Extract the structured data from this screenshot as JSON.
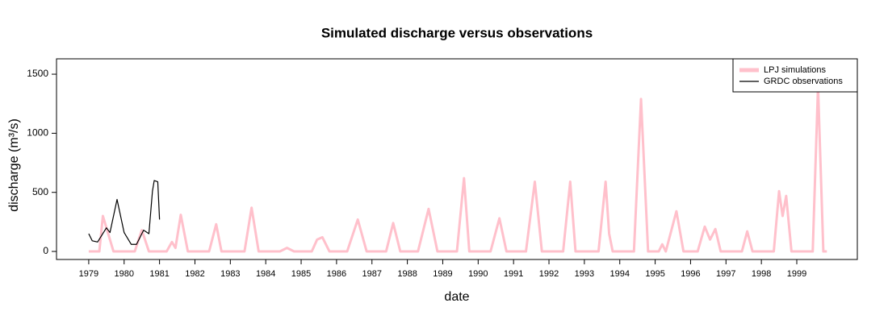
{
  "chart_data": {
    "type": "line",
    "title": "Simulated discharge versus observations",
    "x_label": "date",
    "y_label": "discharge (m³/s)",
    "xlim": [
      1978.09,
      2000.71
    ],
    "ylim": [
      -68,
      1630
    ],
    "xticks": [
      1979,
      1980,
      1981,
      1982,
      1983,
      1984,
      1985,
      1986,
      1987,
      1988,
      1989,
      1990,
      1991,
      1992,
      1993,
      1994,
      1995,
      1996,
      1997,
      1998,
      1999
    ],
    "yticks": [
      0,
      500,
      1000,
      1500
    ],
    "legend": "top-right",
    "series": [
      {
        "name": "LPJ simulations",
        "color": "#ffc0cb",
        "x": [
          1979.0,
          1979.3,
          1979.4,
          1979.55,
          1979.7,
          1979.9,
          1980.3,
          1980.5,
          1980.7,
          1981.2,
          1981.35,
          1981.45,
          1981.6,
          1981.8,
          1982.4,
          1982.6,
          1982.75,
          1983.4,
          1983.6,
          1983.8,
          1984.4,
          1984.6,
          1984.8,
          1985.3,
          1985.45,
          1985.6,
          1985.8,
          1986.3,
          1986.6,
          1986.85,
          1987.4,
          1987.6,
          1987.8,
          1988.3,
          1988.6,
          1988.85,
          1989.4,
          1989.6,
          1989.75,
          1990.35,
          1990.6,
          1990.8,
          1991.35,
          1991.6,
          1991.8,
          1992.4,
          1992.6,
          1992.75,
          1993.4,
          1993.6,
          1993.7,
          1993.8,
          1994.4,
          1994.6,
          1994.8,
          1995.1,
          1995.2,
          1995.3,
          1995.6,
          1995.8,
          1996.2,
          1996.4,
          1996.55,
          1996.7,
          1996.85,
          1997.45,
          1997.6,
          1997.75,
          1998.35,
          1998.5,
          1998.6,
          1998.7,
          1998.85,
          1999.45,
          1999.6,
          1999.75,
          1999.85
        ],
        "values": [
          0,
          0,
          300,
          150,
          0,
          0,
          0,
          180,
          0,
          0,
          80,
          30,
          310,
          0,
          0,
          230,
          0,
          0,
          370,
          0,
          0,
          30,
          0,
          0,
          100,
          120,
          0,
          0,
          270,
          0,
          0,
          240,
          0,
          0,
          360,
          0,
          0,
          620,
          0,
          0,
          280,
          0,
          0,
          590,
          0,
          0,
          590,
          0,
          0,
          590,
          150,
          0,
          0,
          1290,
          0,
          0,
          60,
          0,
          340,
          0,
          0,
          210,
          100,
          190,
          0,
          0,
          170,
          0,
          0,
          510,
          300,
          470,
          0,
          0,
          1400,
          0,
          0
        ]
      },
      {
        "name": "GRDC observations",
        "color": "#000000",
        "x": [
          1979.0,
          1979.1,
          1979.25,
          1979.5,
          1979.6,
          1979.8,
          1980.0,
          1980.2,
          1980.35,
          1980.55,
          1980.7,
          1980.8,
          1980.85,
          1980.95,
          1981.0
        ],
        "values": [
          150,
          90,
          80,
          200,
          160,
          440,
          160,
          60,
          60,
          180,
          150,
          510,
          600,
          590,
          270
        ]
      }
    ]
  }
}
